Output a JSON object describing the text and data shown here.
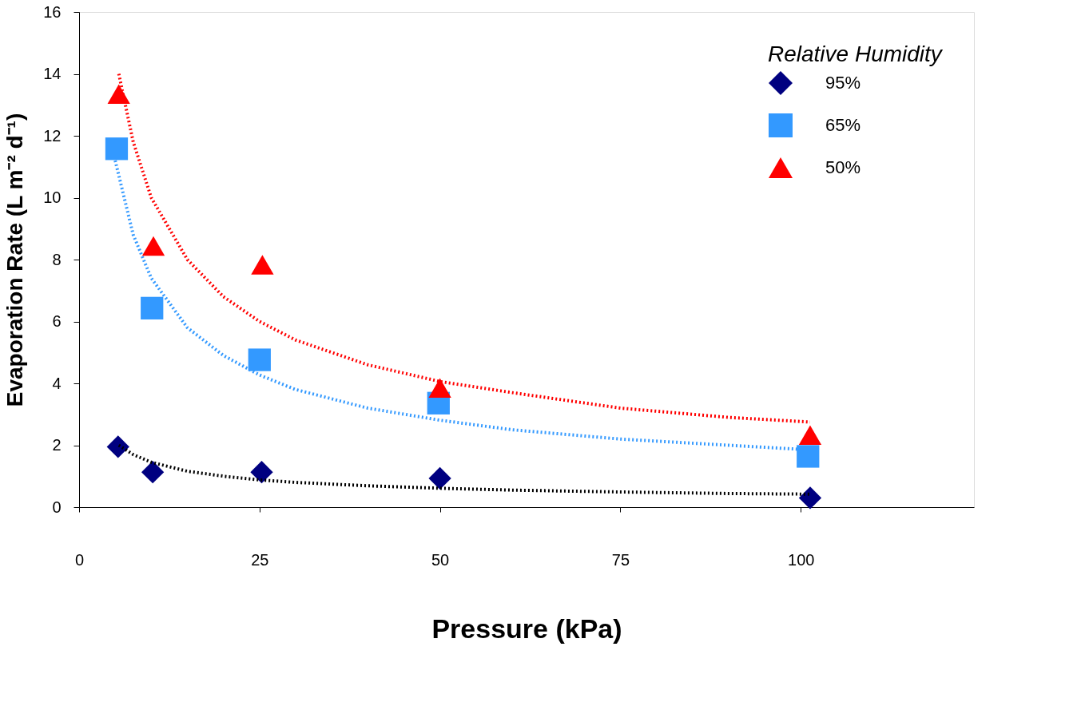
{
  "chart_data": {
    "type": "scatter",
    "xlabel": "Pressure (kPa)",
    "ylabel": "Evaporation Rate     (L m⁻² d⁻¹)",
    "legend_title": "Relative Humidity",
    "xlim": [
      0,
      124
    ],
    "xticks": [
      0,
      25,
      50,
      75,
      100
    ],
    "ylim": [
      0,
      16
    ],
    "yticks": [
      0,
      2,
      4,
      6,
      8,
      10,
      12,
      14,
      16
    ],
    "grid": false,
    "legend": "top right",
    "series": [
      {
        "name": "95%",
        "marker": "diamond",
        "color": "#000080",
        "x": [
          5.4,
          10.2,
          25.3,
          50,
          101.3
        ],
        "values": [
          1.95,
          1.13,
          1.13,
          0.93,
          0.3
        ]
      },
      {
        "name": "65%",
        "marker": "square",
        "color": "#3399ff",
        "x": [
          5.2,
          10.1,
          25,
          49.8,
          101
        ],
        "values": [
          11.58,
          6.43,
          4.76,
          3.36,
          1.64
        ]
      },
      {
        "name": "50%",
        "marker": "triangle",
        "color": "#ff0000",
        "x": [
          5.5,
          10.3,
          25.4,
          50,
          101.3
        ],
        "values": [
          13.35,
          8.44,
          7.83,
          3.85,
          2.33
        ]
      },
      {
        "type": "line",
        "line_style": "dotted",
        "color": "#000000",
        "x": [
          5.5,
          7.5,
          10,
          15,
          20,
          25,
          30,
          40,
          50,
          60,
          75,
          90,
          101.3
        ],
        "values": [
          2.0,
          1.7,
          1.45,
          1.16,
          1.0,
          0.88,
          0.8,
          0.69,
          0.61,
          0.55,
          0.49,
          0.44,
          0.42
        ]
      },
      {
        "type": "line",
        "line_style": "dotted",
        "color": "#3399ff",
        "x": [
          5,
          7.5,
          10,
          15,
          20,
          25,
          30,
          40,
          50,
          60,
          75,
          90,
          101.3
        ],
        "values": [
          11.2,
          8.8,
          7.4,
          5.8,
          4.9,
          4.27,
          3.8,
          3.2,
          2.81,
          2.5,
          2.2,
          2.0,
          1.85
        ]
      },
      {
        "type": "line",
        "line_style": "dotted",
        "color": "#ff0000",
        "x": [
          5.5,
          7.5,
          10,
          15,
          20,
          25,
          30,
          40,
          50,
          60,
          75,
          90,
          101.3
        ],
        "values": [
          14.0,
          11.8,
          10.0,
          8.0,
          6.8,
          6.0,
          5.4,
          4.6,
          4.06,
          3.7,
          3.2,
          2.9,
          2.75
        ]
      }
    ]
  }
}
